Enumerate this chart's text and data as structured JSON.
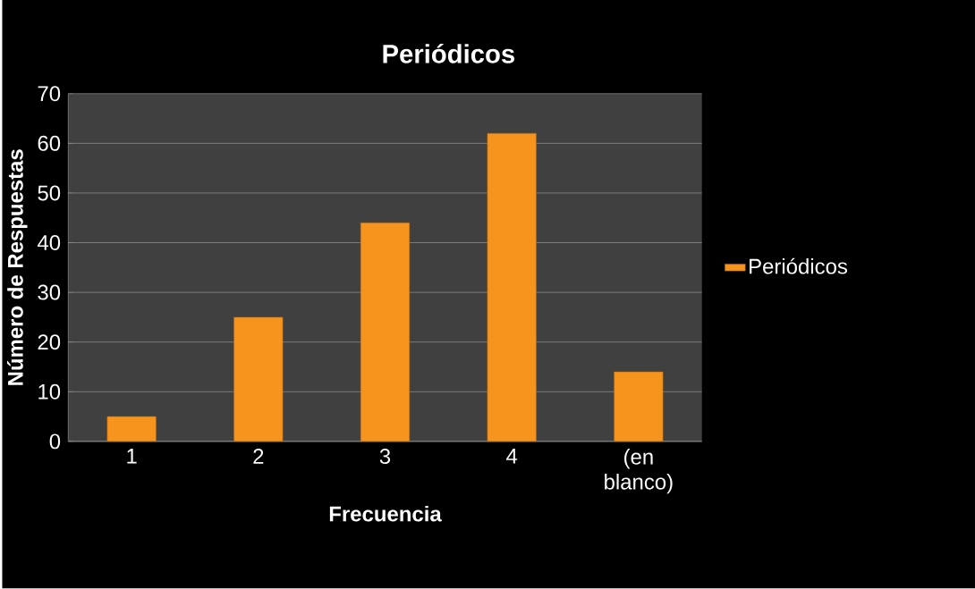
{
  "chart_data": {
    "type": "bar",
    "title": "Periódicos",
    "xlabel": "Frecuencia",
    "ylabel": "Número de Respuestas",
    "categories": [
      "1",
      "2",
      "3",
      "4",
      "(en blanco)"
    ],
    "series": [
      {
        "name": "Periódicos",
        "color": "#f7941d",
        "values": [
          5,
          25,
          44,
          62,
          14
        ]
      }
    ],
    "ylim": [
      0,
      70
    ],
    "yticks": [
      0,
      10,
      20,
      30,
      40,
      50,
      60,
      70
    ],
    "grid": "y",
    "legend": "right"
  }
}
